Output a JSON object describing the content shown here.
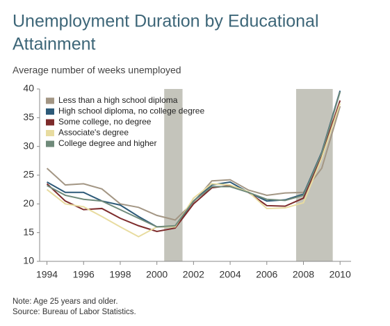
{
  "chart_data": {
    "type": "line",
    "title": "Unemployment Duration by Educational Attainment",
    "subtitle": "Average number of weeks unemployed",
    "x": [
      1994,
      1995,
      1996,
      1997,
      1998,
      1999,
      2000,
      2001,
      2002,
      2003,
      2004,
      2005,
      2006,
      2007,
      2008,
      2009,
      2010
    ],
    "series": [
      {
        "name": "Less than a high school diploma",
        "color": "#a39684",
        "values": [
          26.2,
          23.3,
          23.5,
          22.6,
          20.0,
          19.4,
          18.0,
          17.2,
          20.3,
          24.0,
          24.2,
          22.4,
          21.5,
          21.9,
          22.0,
          26.2,
          37.0
        ]
      },
      {
        "name": "High school diploma, no college degree",
        "color": "#2d5a78",
        "values": [
          23.8,
          22.0,
          22.0,
          20.5,
          19.8,
          17.8,
          16.0,
          16.0,
          20.5,
          23.3,
          23.8,
          22.0,
          20.5,
          20.7,
          21.7,
          29.0,
          39.7
        ]
      },
      {
        "name": "Some college, no degree",
        "color": "#7d2b2b",
        "values": [
          23.5,
          20.5,
          19.0,
          19.2,
          17.5,
          16.2,
          15.2,
          15.8,
          20.0,
          22.8,
          23.2,
          22.0,
          19.7,
          19.6,
          21.0,
          28.5,
          38.0
        ]
      },
      {
        "name": "Associate's degree",
        "color": "#e8dca0",
        "values": [
          22.5,
          20.0,
          19.5,
          17.8,
          16.0,
          14.3,
          16.0,
          16.0,
          21.0,
          23.5,
          23.3,
          22.1,
          19.2,
          19.3,
          20.2,
          28.0,
          37.5
        ]
      },
      {
        "name": "College degree and higher",
        "color": "#6f8a7a",
        "values": [
          23.2,
          21.5,
          20.8,
          20.5,
          19.0,
          17.5,
          16.0,
          16.2,
          20.5,
          23.0,
          23.0,
          22.0,
          20.8,
          20.6,
          21.5,
          28.8,
          39.5
        ]
      }
    ],
    "recessions": [
      [
        2000.4,
        2001.4
      ],
      [
        2007.6,
        2009.6
      ]
    ],
    "recession_color": "#c4c4bb",
    "xlim": [
      1993.6,
      2010.6
    ],
    "xticks": [
      1994,
      1996,
      1998,
      2000,
      2002,
      2004,
      2006,
      2008,
      2010
    ],
    "ylim": [
      10,
      40
    ],
    "yticks": [
      10,
      15,
      20,
      25,
      30,
      35,
      40
    ],
    "legend": "top-left",
    "notes": [
      "Note: Age 25 years and older.",
      "Source: Bureau of Labor Statistics."
    ]
  }
}
